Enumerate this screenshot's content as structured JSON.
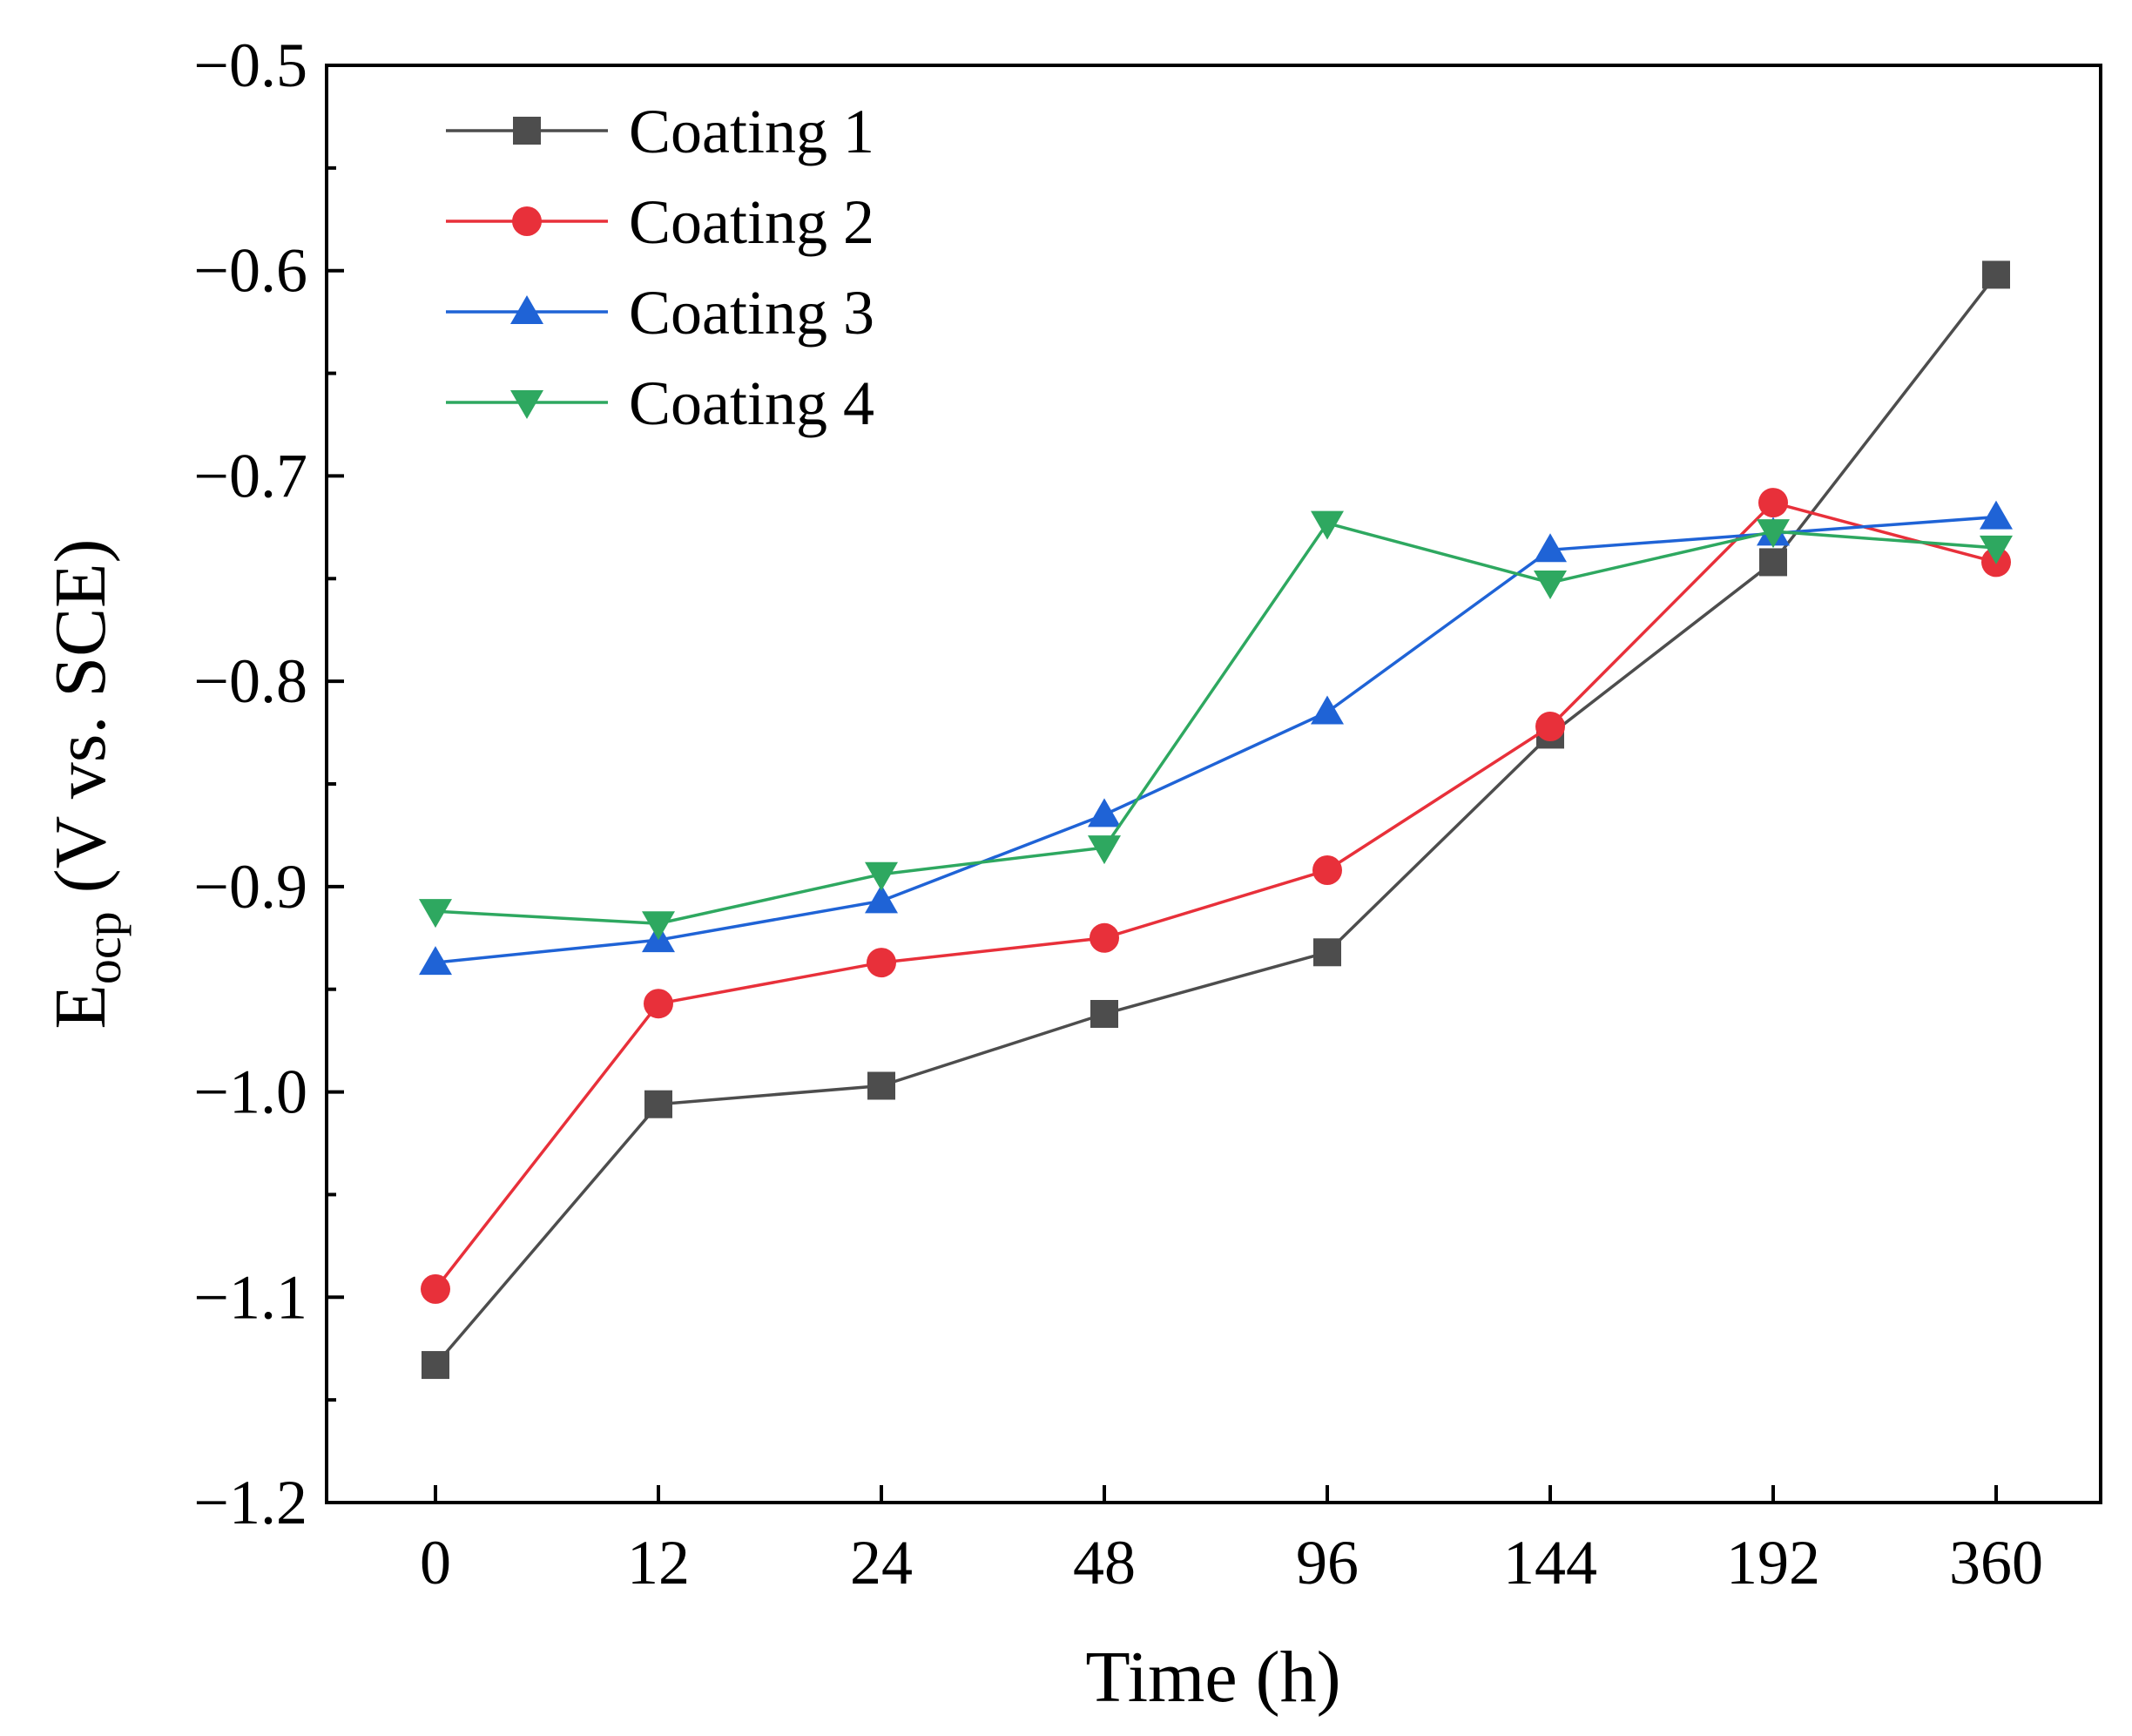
{
  "chart_data": {
    "type": "line",
    "title": "",
    "xlabel": "Time (h)",
    "ylabel_main": "E",
    "ylabel_sub": "ocp",
    "ylabel_rest": " (V vs. SCE)",
    "categories": [
      "0",
      "12",
      "24",
      "48",
      "96",
      "144",
      "192",
      "360"
    ],
    "ylim": [
      -1.2,
      -0.5
    ],
    "yticks": [
      -1.2,
      -1.1,
      -1.0,
      -0.9,
      -0.8,
      -0.7,
      -0.6,
      -0.5
    ],
    "ytick_labels": [
      "−1.2",
      "−1.1",
      "−1.0",
      "−0.9",
      "−0.8",
      "−0.7",
      "−0.6",
      "−0.5"
    ],
    "grid": false,
    "legend_position": "top-left",
    "series": [
      {
        "name": "Coating 1",
        "color": "#4d4d4d",
        "marker": "square",
        "values": [
          -1.133,
          -1.006,
          -0.997,
          -0.962,
          -0.932,
          -0.826,
          -0.742,
          -0.602
        ]
      },
      {
        "name": "Coating 2",
        "color": "#e8303a",
        "marker": "circle",
        "values": [
          -1.096,
          -0.957,
          -0.937,
          -0.925,
          -0.892,
          -0.822,
          -0.713,
          -0.742
        ]
      },
      {
        "name": "Coating 3",
        "color": "#1f63d6",
        "marker": "triangle-up",
        "values": [
          -0.937,
          -0.926,
          -0.907,
          -0.865,
          -0.815,
          -0.736,
          -0.728,
          -0.72
        ]
      },
      {
        "name": "Coating 4",
        "color": "#2ea860",
        "marker": "triangle-down",
        "values": [
          -0.912,
          -0.918,
          -0.894,
          -0.881,
          -0.723,
          -0.752,
          -0.727,
          -0.735
        ]
      }
    ]
  }
}
